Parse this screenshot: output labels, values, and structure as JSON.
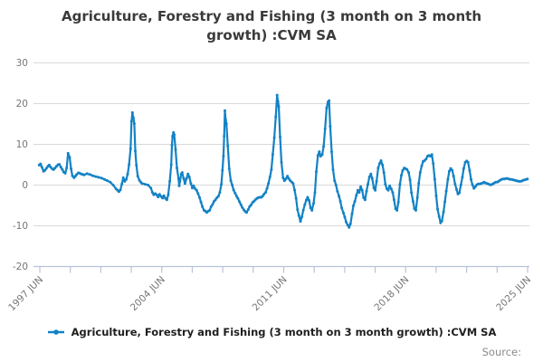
{
  "title": "Agriculture, Forestry and Fishing (3 month on 3 month growth) :CVM SA",
  "legend": {
    "label": "Agriculture, Forestry and Fishing (3 month on 3 month growth) :CVM SA"
  },
  "source_label": "Source:",
  "colors": {
    "series": "#1382c5",
    "grid": "#d9d9d9",
    "axis": "#b9c3d8",
    "axis_text": "#757575",
    "title_text": "#3a3a3a"
  },
  "chart_data": {
    "type": "line",
    "title": "Agriculture, Forestry and Fishing (3 month on 3 month growth) :CVM SA",
    "series_name": "Agriculture, Forestry and Fishing (3 month on 3 month growth) :CVM SA",
    "xlabel": "",
    "ylabel": "",
    "grid": "horizontal",
    "legend_position": "bottom",
    "y_axis": {
      "ticks": [
        30,
        20,
        10,
        0,
        -10,
        -20
      ],
      "range": [
        -20,
        30
      ]
    },
    "x_axis": {
      "tick_labels": [
        "1997 JUN",
        "2004 JUN",
        "2011 JUN",
        "2018 JUN",
        "2025 JUN"
      ],
      "tick_count": 17,
      "labeled_tick_every": 4,
      "domain_years": [
        1997.458,
        2025.458
      ]
    },
    "points": [
      [
        1997.42,
        4.9
      ],
      [
        1997.5,
        5.2
      ],
      [
        1997.58,
        4.4
      ],
      [
        1997.67,
        3.4
      ],
      [
        1997.75,
        3.6
      ],
      [
        1997.83,
        4.1
      ],
      [
        1997.92,
        4.6
      ],
      [
        1998.0,
        4.9
      ],
      [
        1998.08,
        4.4
      ],
      [
        1998.17,
        4.0
      ],
      [
        1998.25,
        3.8
      ],
      [
        1998.33,
        4.2
      ],
      [
        1998.42,
        4.6
      ],
      [
        1998.5,
        5.0
      ],
      [
        1998.58,
        5.1
      ],
      [
        1998.67,
        4.4
      ],
      [
        1998.75,
        3.8
      ],
      [
        1998.83,
        3.2
      ],
      [
        1998.92,
        2.9
      ],
      [
        1999.0,
        4.2
      ],
      [
        1999.08,
        7.8
      ],
      [
        1999.17,
        6.8
      ],
      [
        1999.25,
        4.0
      ],
      [
        1999.33,
        2.3
      ],
      [
        1999.42,
        1.8
      ],
      [
        1999.5,
        2.2
      ],
      [
        1999.58,
        2.6
      ],
      [
        1999.67,
        3.0
      ],
      [
        1999.75,
        2.9
      ],
      [
        1999.83,
        2.7
      ],
      [
        1999.92,
        2.6
      ],
      [
        2000.0,
        2.5
      ],
      [
        2000.17,
        2.8
      ],
      [
        2000.33,
        2.6
      ],
      [
        2000.5,
        2.3
      ],
      [
        2000.67,
        2.1
      ],
      [
        2000.83,
        1.9
      ],
      [
        2001.0,
        1.7
      ],
      [
        2001.17,
        1.4
      ],
      [
        2001.33,
        1.1
      ],
      [
        2001.5,
        0.7
      ],
      [
        2001.67,
        0.0
      ],
      [
        2001.83,
        -0.9
      ],
      [
        2001.92,
        -1.3
      ],
      [
        2002.0,
        -1.6
      ],
      [
        2002.08,
        -1.2
      ],
      [
        2002.17,
        0.3
      ],
      [
        2002.25,
        1.8
      ],
      [
        2002.33,
        0.9
      ],
      [
        2002.42,
        1.4
      ],
      [
        2002.5,
        2.7
      ],
      [
        2002.58,
        5.0
      ],
      [
        2002.67,
        8.9
      ],
      [
        2002.72,
        15.6
      ],
      [
        2002.77,
        17.8
      ],
      [
        2002.83,
        16.5
      ],
      [
        2002.88,
        15.1
      ],
      [
        2002.94,
        8.4
      ],
      [
        2003.0,
        4.9
      ],
      [
        2003.08,
        2.2
      ],
      [
        2003.17,
        1.2
      ],
      [
        2003.25,
        0.7
      ],
      [
        2003.33,
        0.4
      ],
      [
        2003.5,
        0.2
      ],
      [
        2003.67,
        0.0
      ],
      [
        2003.83,
        -0.7
      ],
      [
        2003.92,
        -1.8
      ],
      [
        2004.0,
        -2.4
      ],
      [
        2004.08,
        -2.1
      ],
      [
        2004.17,
        -2.4
      ],
      [
        2004.25,
        -2.9
      ],
      [
        2004.33,
        -2.3
      ],
      [
        2004.42,
        -2.8
      ],
      [
        2004.5,
        -3.2
      ],
      [
        2004.58,
        -2.6
      ],
      [
        2004.67,
        -3.3
      ],
      [
        2004.75,
        -3.6
      ],
      [
        2004.83,
        -2.4
      ],
      [
        2004.92,
        0.9
      ],
      [
        2005.0,
        5.0
      ],
      [
        2005.04,
        9.8
      ],
      [
        2005.08,
        12.0
      ],
      [
        2005.13,
        12.9
      ],
      [
        2005.17,
        12.4
      ],
      [
        2005.25,
        8.7
      ],
      [
        2005.33,
        4.2
      ],
      [
        2005.42,
        1.6
      ],
      [
        2005.46,
        -0.2
      ],
      [
        2005.5,
        0.9
      ],
      [
        2005.58,
        2.7
      ],
      [
        2005.63,
        3.1
      ],
      [
        2005.71,
        1.6
      ],
      [
        2005.79,
        0.4
      ],
      [
        2005.88,
        1.6
      ],
      [
        2005.96,
        2.7
      ],
      [
        2006.04,
        2.0
      ],
      [
        2006.13,
        0.4
      ],
      [
        2006.21,
        -0.7
      ],
      [
        2006.29,
        -0.2
      ],
      [
        2006.38,
        -0.9
      ],
      [
        2006.46,
        -1.3
      ],
      [
        2006.54,
        -2.1
      ],
      [
        2006.63,
        -3.1
      ],
      [
        2006.71,
        -4.2
      ],
      [
        2006.79,
        -5.3
      ],
      [
        2006.88,
        -6.2
      ],
      [
        2006.96,
        -6.4
      ],
      [
        2007.04,
        -6.7
      ],
      [
        2007.13,
        -6.4
      ],
      [
        2007.21,
        -6.2
      ],
      [
        2007.29,
        -5.3
      ],
      [
        2007.38,
        -4.7
      ],
      [
        2007.46,
        -4.0
      ],
      [
        2007.54,
        -3.6
      ],
      [
        2007.63,
        -3.1
      ],
      [
        2007.71,
        -2.7
      ],
      [
        2007.79,
        -1.8
      ],
      [
        2007.88,
        0.2
      ],
      [
        2007.94,
        3.6
      ],
      [
        2008.0,
        7.1
      ],
      [
        2008.04,
        12.0
      ],
      [
        2008.08,
        18.3
      ],
      [
        2008.13,
        16.0
      ],
      [
        2008.17,
        15.1
      ],
      [
        2008.25,
        9.6
      ],
      [
        2008.33,
        4.0
      ],
      [
        2008.42,
        1.1
      ],
      [
        2008.5,
        0.0
      ],
      [
        2008.58,
        -1.2
      ],
      [
        2008.67,
        -2.0
      ],
      [
        2008.75,
        -2.7
      ],
      [
        2008.83,
        -3.3
      ],
      [
        2008.92,
        -4.1
      ],
      [
        2009.0,
        -4.8
      ],
      [
        2009.08,
        -5.5
      ],
      [
        2009.17,
        -6.1
      ],
      [
        2009.25,
        -6.5
      ],
      [
        2009.33,
        -6.7
      ],
      [
        2009.42,
        -6.0
      ],
      [
        2009.5,
        -5.3
      ],
      [
        2009.58,
        -4.9
      ],
      [
        2009.67,
        -4.3
      ],
      [
        2009.75,
        -4.0
      ],
      [
        2009.83,
        -3.6
      ],
      [
        2009.92,
        -3.3
      ],
      [
        2010.0,
        -3.1
      ],
      [
        2010.08,
        -3.0
      ],
      [
        2010.17,
        -3.0
      ],
      [
        2010.25,
        -2.7
      ],
      [
        2010.33,
        -2.2
      ],
      [
        2010.42,
        -1.8
      ],
      [
        2010.5,
        -0.8
      ],
      [
        2010.58,
        0.4
      ],
      [
        2010.67,
        2.0
      ],
      [
        2010.75,
        3.8
      ],
      [
        2010.83,
        7.5
      ],
      [
        2010.92,
        11.6
      ],
      [
        2011.0,
        16.7
      ],
      [
        2011.08,
        22.1
      ],
      [
        2011.13,
        20.5
      ],
      [
        2011.17,
        19.3
      ],
      [
        2011.25,
        11.8
      ],
      [
        2011.33,
        5.6
      ],
      [
        2011.42,
        1.8
      ],
      [
        2011.5,
        1.1
      ],
      [
        2011.58,
        1.5
      ],
      [
        2011.67,
        2.2
      ],
      [
        2011.75,
        1.6
      ],
      [
        2011.83,
        1.1
      ],
      [
        2011.92,
        0.7
      ],
      [
        2012.0,
        0.4
      ],
      [
        2012.08,
        -1.2
      ],
      [
        2012.17,
        -3.3
      ],
      [
        2012.25,
        -6.0
      ],
      [
        2012.33,
        -7.5
      ],
      [
        2012.42,
        -8.9
      ],
      [
        2012.5,
        -7.8
      ],
      [
        2012.58,
        -6.2
      ],
      [
        2012.67,
        -4.8
      ],
      [
        2012.75,
        -3.7
      ],
      [
        2012.83,
        -3.0
      ],
      [
        2012.92,
        -3.8
      ],
      [
        2013.0,
        -5.6
      ],
      [
        2013.08,
        -6.2
      ],
      [
        2013.17,
        -4.5
      ],
      [
        2013.25,
        -1.8
      ],
      [
        2013.33,
        3.3
      ],
      [
        2013.42,
        7.3
      ],
      [
        2013.5,
        8.2
      ],
      [
        2013.58,
        7.1
      ],
      [
        2013.67,
        7.5
      ],
      [
        2013.75,
        9.5
      ],
      [
        2013.83,
        13.8
      ],
      [
        2013.92,
        18.9
      ],
      [
        2014.0,
        20.4
      ],
      [
        2014.06,
        20.7
      ],
      [
        2014.13,
        14.4
      ],
      [
        2014.21,
        8.2
      ],
      [
        2014.29,
        3.8
      ],
      [
        2014.38,
        1.1
      ],
      [
        2014.46,
        0.0
      ],
      [
        2014.54,
        -1.5
      ],
      [
        2014.63,
        -2.7
      ],
      [
        2014.71,
        -4.0
      ],
      [
        2014.79,
        -5.6
      ],
      [
        2014.88,
        -6.8
      ],
      [
        2014.96,
        -7.8
      ],
      [
        2015.04,
        -9.1
      ],
      [
        2015.13,
        -9.8
      ],
      [
        2015.21,
        -10.4
      ],
      [
        2015.29,
        -9.5
      ],
      [
        2015.38,
        -7.1
      ],
      [
        2015.46,
        -5.1
      ],
      [
        2015.54,
        -4.0
      ],
      [
        2015.63,
        -2.5
      ],
      [
        2015.71,
        -1.3
      ],
      [
        2015.79,
        -1.8
      ],
      [
        2015.88,
        -0.4
      ],
      [
        2015.96,
        -1.3
      ],
      [
        2016.04,
        -3.1
      ],
      [
        2016.13,
        -3.6
      ],
      [
        2016.21,
        -1.5
      ],
      [
        2016.29,
        0.2
      ],
      [
        2016.38,
        2.0
      ],
      [
        2016.46,
        2.7
      ],
      [
        2016.54,
        1.6
      ],
      [
        2016.63,
        -0.7
      ],
      [
        2016.71,
        -1.3
      ],
      [
        2016.79,
        0.9
      ],
      [
        2016.88,
        4.2
      ],
      [
        2016.96,
        5.3
      ],
      [
        2017.04,
        6.0
      ],
      [
        2017.13,
        4.9
      ],
      [
        2017.21,
        3.1
      ],
      [
        2017.29,
        0.2
      ],
      [
        2017.38,
        -0.9
      ],
      [
        2017.46,
        -1.3
      ],
      [
        2017.54,
        -0.2
      ],
      [
        2017.63,
        -0.9
      ],
      [
        2017.71,
        -1.8
      ],
      [
        2017.79,
        -3.6
      ],
      [
        2017.88,
        -5.8
      ],
      [
        2017.96,
        -6.2
      ],
      [
        2018.04,
        -4.2
      ],
      [
        2018.13,
        0.2
      ],
      [
        2018.21,
        2.4
      ],
      [
        2018.29,
        3.6
      ],
      [
        2018.38,
        4.2
      ],
      [
        2018.46,
        4.0
      ],
      [
        2018.54,
        3.8
      ],
      [
        2018.63,
        3.1
      ],
      [
        2018.71,
        1.3
      ],
      [
        2018.79,
        -1.8
      ],
      [
        2018.88,
        -4.0
      ],
      [
        2018.96,
        -5.8
      ],
      [
        2019.04,
        -6.2
      ],
      [
        2019.13,
        -3.1
      ],
      [
        2019.21,
        0.4
      ],
      [
        2019.29,
        3.1
      ],
      [
        2019.38,
        4.7
      ],
      [
        2019.46,
        5.8
      ],
      [
        2019.54,
        6.0
      ],
      [
        2019.63,
        6.4
      ],
      [
        2019.71,
        7.1
      ],
      [
        2019.79,
        7.3
      ],
      [
        2019.88,
        7.1
      ],
      [
        2019.96,
        7.5
      ],
      [
        2020.04,
        5.3
      ],
      [
        2020.13,
        1.4
      ],
      [
        2020.21,
        -2.6
      ],
      [
        2020.29,
        -5.9
      ],
      [
        2020.38,
        -7.7
      ],
      [
        2020.46,
        -9.3
      ],
      [
        2020.54,
        -8.8
      ],
      [
        2020.63,
        -6.6
      ],
      [
        2020.71,
        -4.1
      ],
      [
        2020.79,
        -1.5
      ],
      [
        2020.88,
        1.4
      ],
      [
        2020.96,
        3.4
      ],
      [
        2021.04,
        4.1
      ],
      [
        2021.13,
        3.6
      ],
      [
        2021.21,
        2.2
      ],
      [
        2021.29,
        0.3
      ],
      [
        2021.38,
        -1.1
      ],
      [
        2021.46,
        -2.2
      ],
      [
        2021.54,
        -1.9
      ],
      [
        2021.63,
        0.1
      ],
      [
        2021.71,
        1.9
      ],
      [
        2021.79,
        4.1
      ],
      [
        2021.88,
        5.6
      ],
      [
        2021.96,
        5.9
      ],
      [
        2022.04,
        5.6
      ],
      [
        2022.13,
        3.6
      ],
      [
        2022.21,
        1.4
      ],
      [
        2022.29,
        0.1
      ],
      [
        2022.38,
        -0.8
      ],
      [
        2022.46,
        -0.4
      ],
      [
        2022.54,
        0.1
      ],
      [
        2022.63,
        0.3
      ],
      [
        2022.71,
        0.3
      ],
      [
        2022.79,
        0.4
      ],
      [
        2022.88,
        0.5
      ],
      [
        2022.96,
        0.7
      ],
      [
        2023.04,
        0.5
      ],
      [
        2023.13,
        0.4
      ],
      [
        2023.21,
        0.3
      ],
      [
        2023.29,
        0.1
      ],
      [
        2023.38,
        0.1
      ],
      [
        2023.46,
        0.3
      ],
      [
        2023.54,
        0.5
      ],
      [
        2023.63,
        0.7
      ],
      [
        2023.71,
        0.7
      ],
      [
        2023.79,
        0.9
      ],
      [
        2023.88,
        1.2
      ],
      [
        2023.96,
        1.4
      ],
      [
        2024.04,
        1.5
      ],
      [
        2024.13,
        1.5
      ],
      [
        2024.21,
        1.6
      ],
      [
        2024.29,
        1.6
      ],
      [
        2024.38,
        1.5
      ],
      [
        2024.46,
        1.4
      ],
      [
        2024.54,
        1.4
      ],
      [
        2024.63,
        1.3
      ],
      [
        2024.71,
        1.2
      ],
      [
        2024.79,
        1.1
      ],
      [
        2024.88,
        1.0
      ],
      [
        2024.96,
        0.9
      ],
      [
        2025.04,
        0.9
      ],
      [
        2025.13,
        1.0
      ],
      [
        2025.21,
        1.2
      ],
      [
        2025.29,
        1.3
      ],
      [
        2025.38,
        1.4
      ],
      [
        2025.45,
        1.5
      ]
    ]
  }
}
